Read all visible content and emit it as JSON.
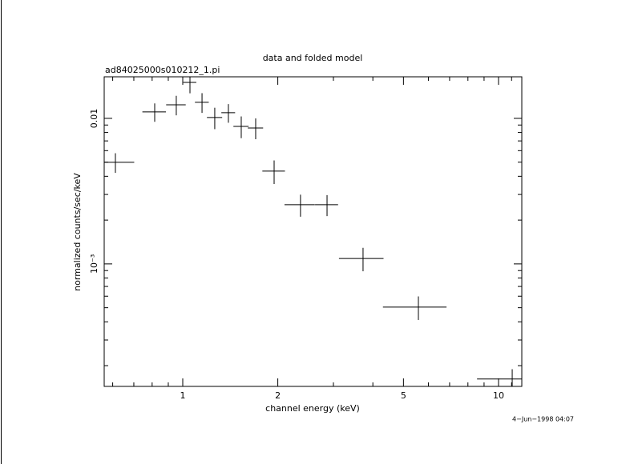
{
  "chart_data": {
    "type": "scatter",
    "title": "data and folded model",
    "subtitle": "ad84025000s010212_1.pi",
    "x_label": "channel energy (keV)",
    "y_label": "normalized counts/sec/keV",
    "annotation": "4−Jun−1998 04:07",
    "x_log": true,
    "y_log": true,
    "color": "#000000",
    "xlim": [
      0.564,
      11.85
    ],
    "ylim": [
      0.000144,
      0.0193
    ],
    "xticks": [
      1,
      2,
      5,
      10
    ],
    "xminorticks": [
      0.6,
      0.7,
      0.8,
      0.9,
      3,
      4,
      6,
      7,
      8,
      9,
      11
    ],
    "yticks": [
      {
        "value": 0.01,
        "label": "0.01"
      },
      {
        "value": 0.001,
        "label": "10⁻³"
      }
    ],
    "yminorticks": [
      0.0002,
      0.0003,
      0.0004,
      0.0005,
      0.0006,
      0.0007,
      0.0008,
      0.0009,
      0.002,
      0.003,
      0.004,
      0.005,
      0.006,
      0.007,
      0.008,
      0.009
    ],
    "x": [
      0.612,
      0.815,
      0.954,
      1.054,
      1.151,
      1.263,
      1.395,
      1.532,
      1.702,
      1.947,
      2.36,
      2.864,
      3.724,
      5.575,
      11.05
    ],
    "x_err": [
      0.09,
      0.07,
      0.068,
      0.05,
      0.058,
      0.07,
      0.07,
      0.085,
      0.095,
      0.16,
      0.26,
      0.24,
      0.6,
      1.27,
      2.5
    ],
    "values": [
      0.00499,
      0.01107,
      0.01239,
      0.01767,
      0.0129,
      0.01013,
      0.01093,
      0.00881,
      0.00859,
      0.00434,
      0.00255,
      0.00255,
      0.00109,
      0.000505,
      0.000162
    ],
    "y_err": [
      0.00077,
      0.0016,
      0.0019,
      0.0028,
      0.002,
      0.0017,
      0.0016,
      0.0015,
      0.0014,
      0.0008,
      0.00044,
      0.00042,
      0.0002,
      9.3e-05,
      2.7e-05
    ]
  }
}
